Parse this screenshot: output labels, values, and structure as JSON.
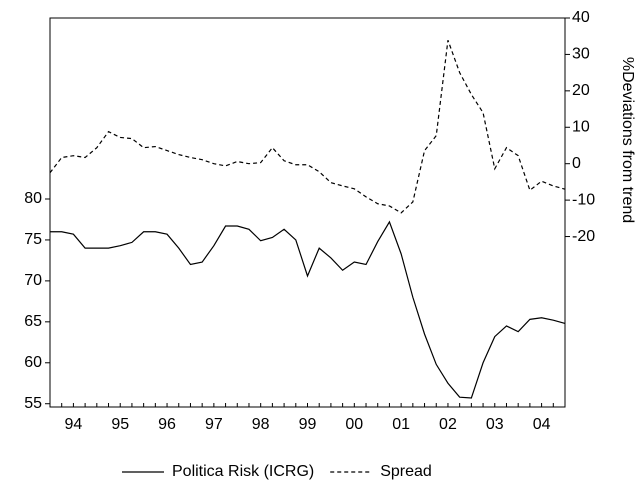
{
  "chart_data": {
    "type": "line",
    "x": [
      1994,
      1994.25,
      1994.5,
      1994.75,
      1995,
      1995.25,
      1995.5,
      1995.75,
      1996,
      1996.25,
      1996.5,
      1996.75,
      1997,
      1997.25,
      1997.5,
      1997.75,
      1998,
      1998.25,
      1998.5,
      1998.75,
      1999,
      1999.25,
      1999.5,
      1999.75,
      2000,
      2000.25,
      2000.5,
      2000.75,
      2001,
      2001.25,
      2001.5,
      2001.75,
      2002,
      2002.25,
      2002.5,
      2002.75,
      2003,
      2003.25,
      2003.5,
      2003.75,
      2004,
      2004.25,
      2004.5,
      2004.75,
      2005
    ],
    "xlim": [
      1994,
      2005
    ],
    "xticks": [
      {
        "value": 1994.5,
        "label": "94"
      },
      {
        "value": 1995.5,
        "label": "95"
      },
      {
        "value": 1996.5,
        "label": "96"
      },
      {
        "value": 1997.5,
        "label": "97"
      },
      {
        "value": 1998.5,
        "label": "98"
      },
      {
        "value": 1999.5,
        "label": "99"
      },
      {
        "value": 2000.5,
        "label": "00"
      },
      {
        "value": 2001.5,
        "label": "01"
      },
      {
        "value": 2002.5,
        "label": "02"
      },
      {
        "value": 2003.5,
        "label": "03"
      },
      {
        "value": 2004.5,
        "label": "04"
      }
    ],
    "ylim": [
      54.6,
      102.1
    ],
    "yticks": [
      55,
      60,
      65,
      70,
      75,
      80
    ],
    "y2lim": [
      -66.8,
      40
    ],
    "y2ticks": [
      -20,
      -10,
      0,
      10,
      20,
      30,
      40
    ],
    "y2label": "%Deviations from trend",
    "series": [
      {
        "name": "Politica Risk (ICRG)",
        "color": "#000000",
        "dash": "none",
        "values": [
          76,
          76,
          75.7,
          74,
          74,
          74,
          74.3,
          74.7,
          76,
          76,
          75.7,
          74,
          72,
          72.3,
          74.3,
          76.7,
          76.7,
          76.3,
          74.9,
          75.3,
          76.3,
          75,
          70.6,
          74,
          72.8,
          71.3,
          72.3,
          72,
          74.8,
          77.2,
          73.3,
          68,
          63.5,
          59.8,
          57.5,
          55.8,
          55.7,
          60,
          63.2,
          64.5,
          63.8,
          65.3,
          65.5,
          65.2,
          64.8
        ]
      },
      {
        "name": "Spread",
        "color": "#000000",
        "dash": "4 3",
        "axis": "y2",
        "values": [
          -2.5,
          1.7,
          2.2,
          1.7,
          4.4,
          8.8,
          7.2,
          6.9,
          4.4,
          4.7,
          3.6,
          2.5,
          1.7,
          1.1,
          0,
          -0.6,
          0.6,
          0,
          0.3,
          4.4,
          0.8,
          -0.3,
          -0.3,
          -2.2,
          -5.2,
          -6.1,
          -6.9,
          -9.1,
          -11,
          -11.6,
          -13.5,
          -10.5,
          3.6,
          7.7,
          33.9,
          25,
          19,
          14,
          -1.4,
          4.4,
          2.2,
          -7.3,
          -4.8,
          -6.1,
          -7
        ]
      }
    ]
  }
}
